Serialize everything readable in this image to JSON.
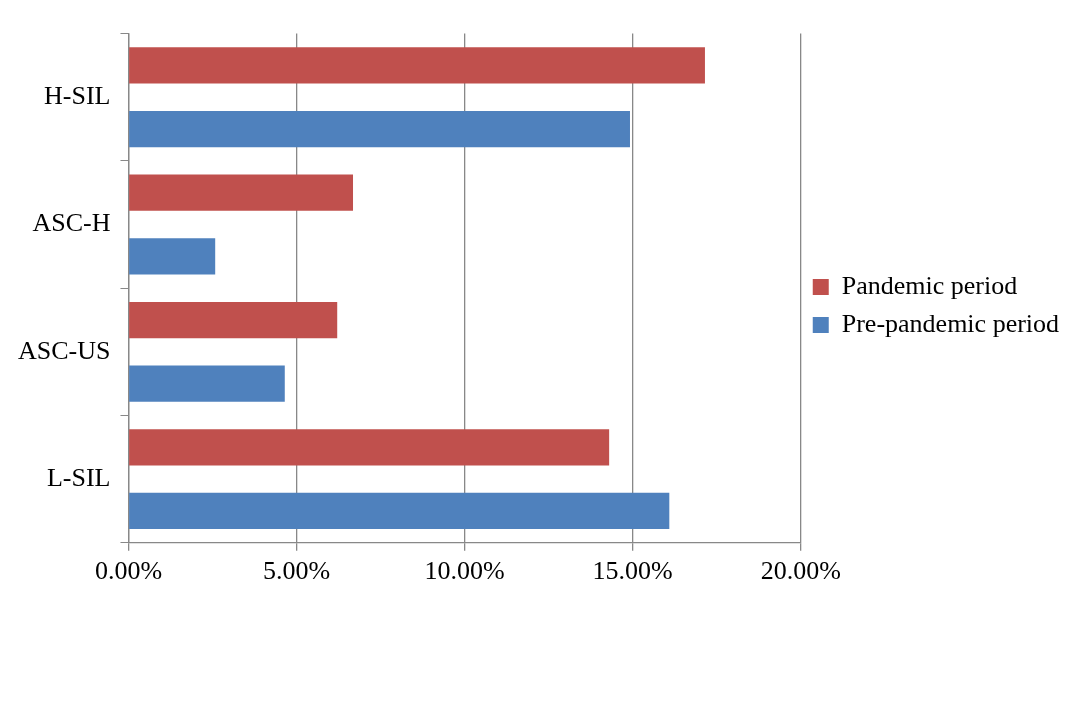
{
  "chart_data": {
    "type": "bar",
    "orientation": "horizontal",
    "categories": [
      "H-SIL",
      "ASC-H",
      "ASC-US",
      "L-SIL"
    ],
    "series": [
      {
        "name": "Pandemic period",
        "color": "#c0504d",
        "values": [
          17.15,
          6.68,
          6.21,
          14.3
        ]
      },
      {
        "name": "Pre-pandemic period",
        "color": "#4f81bd",
        "values": [
          14.92,
          2.58,
          4.65,
          16.09
        ]
      }
    ],
    "xlim": [
      0,
      20
    ],
    "xticks": [
      {
        "value": 0,
        "label": "0.00%"
      },
      {
        "value": 5,
        "label": "5.00%"
      },
      {
        "value": 10,
        "label": "10.00%"
      },
      {
        "value": 15,
        "label": "15.00%"
      },
      {
        "value": 20,
        "label": "20.00%"
      }
    ],
    "grid": "x",
    "legend": "right"
  }
}
